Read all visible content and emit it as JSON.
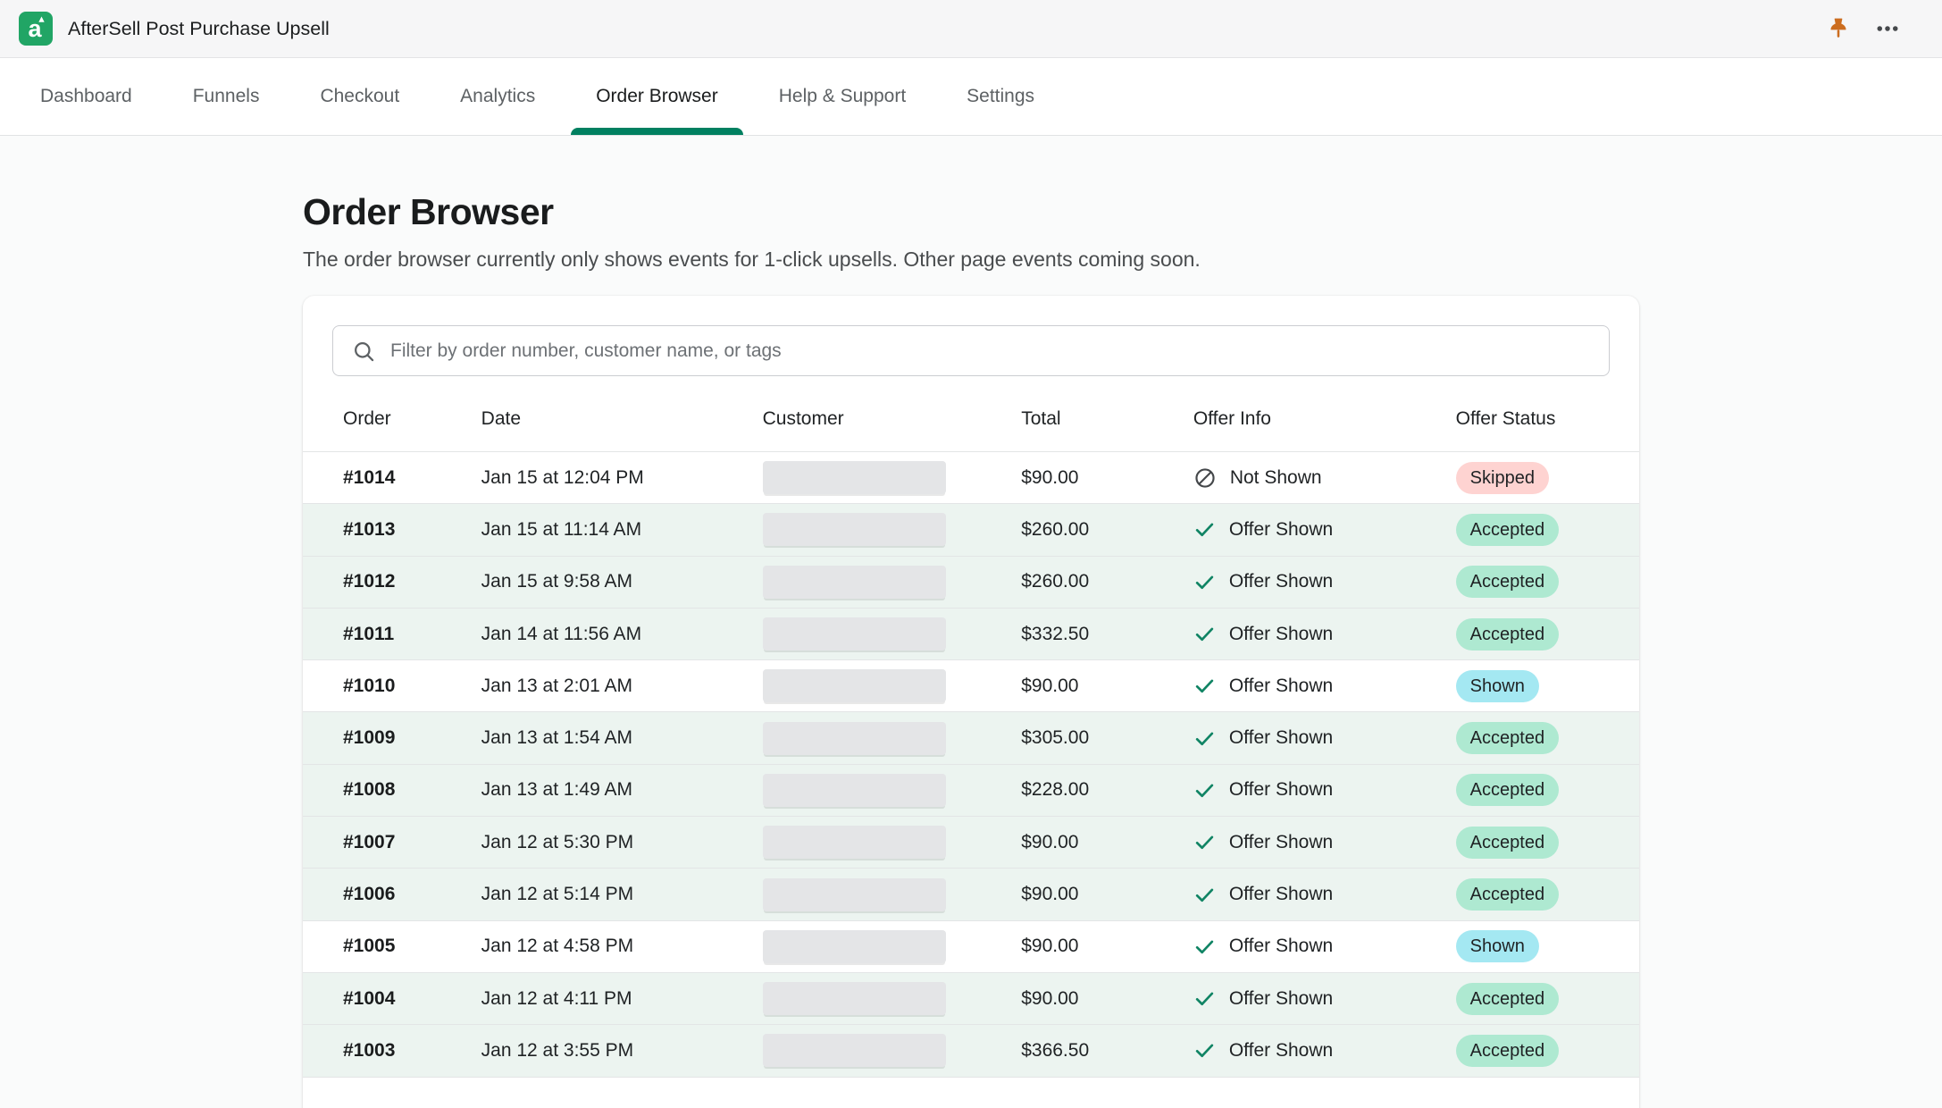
{
  "theme": {
    "accent_green": "#008060",
    "logo_green": "#21a565",
    "pin_orange": "#cc6d1f",
    "check_green": "#108464",
    "badge_success_bg": "#aee9d1",
    "badge_info_bg": "#a4e8f2",
    "badge_critical_bg": "#fed3d1",
    "row_accepted_bg": "#ecf4f0"
  },
  "topbar": {
    "app_title": "AfterSell Post Purchase Upsell",
    "icons": [
      "pin-icon",
      "more-icon"
    ]
  },
  "nav": {
    "tabs": [
      {
        "label": "Dashboard",
        "active": false
      },
      {
        "label": "Funnels",
        "active": false
      },
      {
        "label": "Checkout",
        "active": false
      },
      {
        "label": "Analytics",
        "active": false
      },
      {
        "label": "Order Browser",
        "active": true
      },
      {
        "label": "Help & Support",
        "active": false
      },
      {
        "label": "Settings",
        "active": false
      }
    ]
  },
  "page": {
    "title": "Order Browser",
    "subtitle": "The order browser currently only shows events for 1-click upsells. Other page events coming soon."
  },
  "search": {
    "placeholder": "Filter by order number, customer name, or tags",
    "value": "",
    "icon": "search-icon"
  },
  "table": {
    "columns": [
      "Order",
      "Date",
      "Customer",
      "Total",
      "Offer Info",
      "Offer Status"
    ],
    "rows": [
      {
        "order": "#1014",
        "date": "Jan 15 at 12:04 PM",
        "total": "$90.00",
        "offer_icon": "not-shown",
        "offer_info": "Not Shown",
        "status": "Skipped",
        "status_tone": "critical",
        "highlight": false
      },
      {
        "order": "#1013",
        "date": "Jan 15 at 11:14 AM",
        "total": "$260.00",
        "offer_icon": "check",
        "offer_info": "Offer Shown",
        "status": "Accepted",
        "status_tone": "success",
        "highlight": true
      },
      {
        "order": "#1012",
        "date": "Jan 15 at 9:58 AM",
        "total": "$260.00",
        "offer_icon": "check",
        "offer_info": "Offer Shown",
        "status": "Accepted",
        "status_tone": "success",
        "highlight": true
      },
      {
        "order": "#1011",
        "date": "Jan 14 at 11:56 AM",
        "total": "$332.50",
        "offer_icon": "check",
        "offer_info": "Offer Shown",
        "status": "Accepted",
        "status_tone": "success",
        "highlight": true
      },
      {
        "order": "#1010",
        "date": "Jan 13 at 2:01 AM",
        "total": "$90.00",
        "offer_icon": "check",
        "offer_info": "Offer Shown",
        "status": "Shown",
        "status_tone": "info",
        "highlight": false
      },
      {
        "order": "#1009",
        "date": "Jan 13 at 1:54 AM",
        "total": "$305.00",
        "offer_icon": "check",
        "offer_info": "Offer Shown",
        "status": "Accepted",
        "status_tone": "success",
        "highlight": true
      },
      {
        "order": "#1008",
        "date": "Jan 13 at 1:49 AM",
        "total": "$228.00",
        "offer_icon": "check",
        "offer_info": "Offer Shown",
        "status": "Accepted",
        "status_tone": "success",
        "highlight": true
      },
      {
        "order": "#1007",
        "date": "Jan 12 at 5:30 PM",
        "total": "$90.00",
        "offer_icon": "check",
        "offer_info": "Offer Shown",
        "status": "Accepted",
        "status_tone": "success",
        "highlight": true
      },
      {
        "order": "#1006",
        "date": "Jan 12 at 5:14 PM",
        "total": "$90.00",
        "offer_icon": "check",
        "offer_info": "Offer Shown",
        "status": "Accepted",
        "status_tone": "success",
        "highlight": true
      },
      {
        "order": "#1005",
        "date": "Jan 12 at 4:58 PM",
        "total": "$90.00",
        "offer_icon": "check",
        "offer_info": "Offer Shown",
        "status": "Shown",
        "status_tone": "info",
        "highlight": false
      },
      {
        "order": "#1004",
        "date": "Jan 12 at 4:11 PM",
        "total": "$90.00",
        "offer_icon": "check",
        "offer_info": "Offer Shown",
        "status": "Accepted",
        "status_tone": "success",
        "highlight": true
      },
      {
        "order": "#1003",
        "date": "Jan 12 at 3:55 PM",
        "total": "$366.50",
        "offer_icon": "check",
        "offer_info": "Offer Shown",
        "status": "Accepted",
        "status_tone": "success",
        "highlight": true
      }
    ]
  }
}
